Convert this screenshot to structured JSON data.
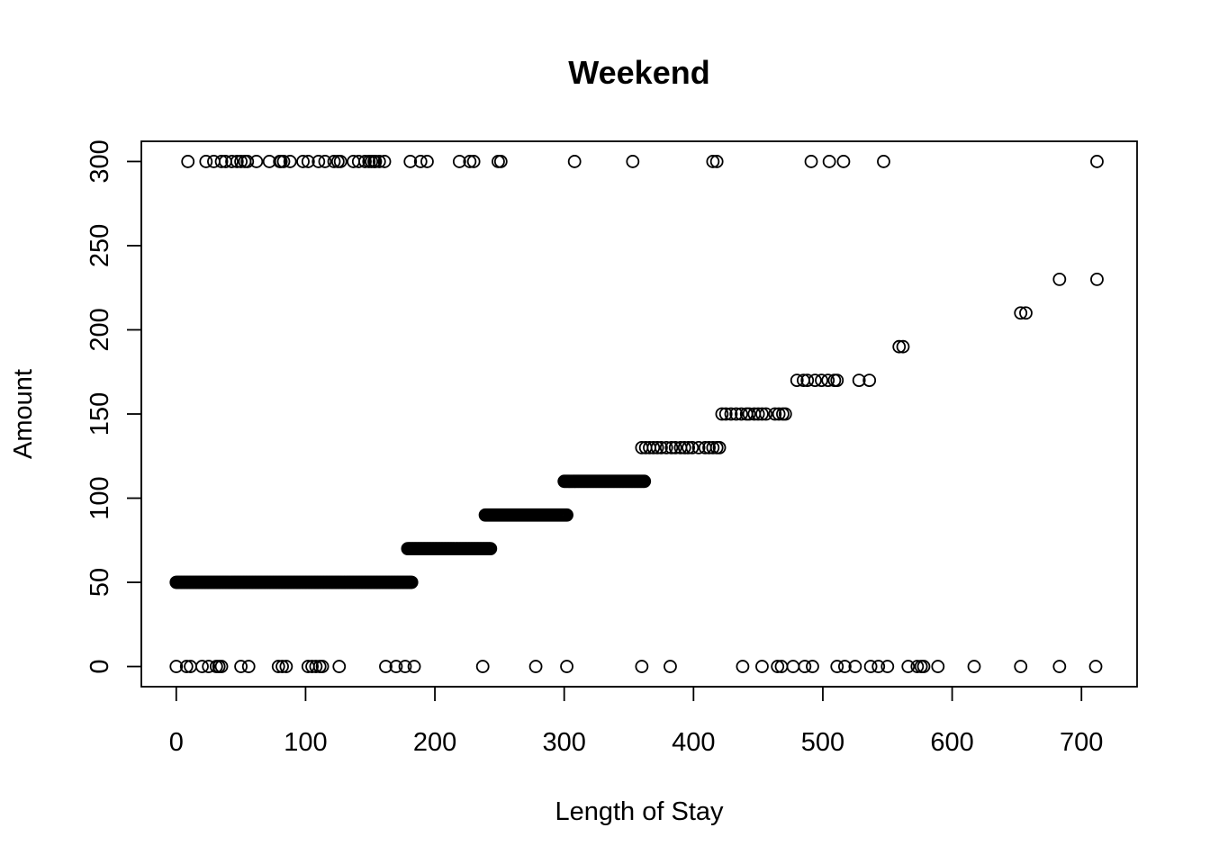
{
  "chart_data": {
    "type": "scatter",
    "title": "Weekend",
    "xlabel": "Length of Stay",
    "ylabel": "Amount",
    "xlim": [
      -27,
      743
    ],
    "ylim": [
      -12,
      312
    ],
    "xticks": [
      0,
      100,
      200,
      300,
      400,
      500,
      600,
      700
    ],
    "yticks": [
      0,
      50,
      100,
      150,
      200,
      250,
      300
    ],
    "xtick_labels": [
      "0",
      "100",
      "200",
      "300",
      "400",
      "500",
      "600",
      "700"
    ],
    "ytick_labels": [
      "0",
      "50",
      "100",
      "150",
      "200",
      "250",
      "300"
    ],
    "grid": false,
    "legend": "none",
    "points": {
      "x_300": [
        9,
        23,
        29,
        35,
        38,
        43,
        47,
        50,
        53,
        55,
        62,
        72,
        80,
        81,
        83,
        88,
        98,
        102,
        110,
        115,
        122,
        125,
        127,
        137,
        141,
        146,
        149,
        151,
        153,
        154,
        157,
        161,
        181,
        189,
        194,
        219,
        227,
        230,
        249,
        251,
        308,
        353,
        415,
        418,
        491,
        505,
        516,
        547,
        712
      ],
      "x_230": [
        683,
        712
      ],
      "x_210": [
        653,
        657
      ],
      "x_190": [
        559,
        562
      ],
      "x_170": [
        480,
        485,
        488,
        494,
        499,
        504,
        509,
        511,
        528,
        536
      ],
      "x_150": [
        422,
        425,
        429,
        433,
        437,
        441,
        443,
        447,
        450,
        453,
        456,
        463,
        466,
        469,
        471
      ],
      "x_130": [
        360,
        363,
        366,
        369,
        372,
        375,
        379,
        383,
        386,
        390,
        393,
        396,
        399,
        404,
        409,
        412,
        415,
        418,
        420
      ],
      "x_0": [
        0,
        8,
        11,
        20,
        25,
        31,
        33,
        35,
        50,
        56,
        79,
        82,
        85,
        102,
        105,
        108,
        111,
        113,
        126,
        162,
        170,
        177,
        184,
        237,
        278,
        302,
        360,
        382,
        438,
        453,
        465,
        468,
        477,
        486,
        492,
        511,
        517,
        525,
        537,
        543,
        550,
        566,
        573,
        576,
        578,
        589,
        617,
        653,
        683,
        711
      ],
      "x_50_range": [
        0,
        182
      ],
      "x_70_range": [
        179,
        243
      ],
      "x_90_range": [
        239,
        302
      ],
      "x_110_range": [
        300,
        362
      ]
    }
  }
}
